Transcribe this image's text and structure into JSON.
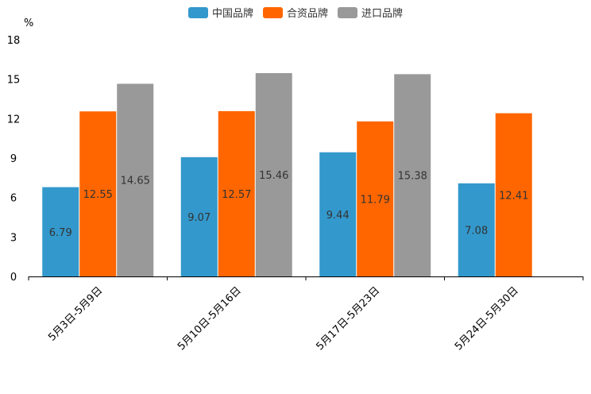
{
  "chart_data": {
    "type": "bar",
    "title": "",
    "ylabel": "%",
    "xlabel": "",
    "ylim": [
      0,
      18
    ],
    "yticks": [
      0,
      3,
      6,
      9,
      12,
      15,
      18
    ],
    "grid": false,
    "legend_position": "top-center",
    "categories": [
      "5月3日-5月9日",
      "5月10日-5月16日",
      "5月17日-5月23日",
      "5月24日-5月30日"
    ],
    "series": [
      {
        "name": "中国品牌",
        "color": "#3398cc",
        "values": [
          6.79,
          9.07,
          9.44,
          7.08
        ]
      },
      {
        "name": "合资品牌",
        "color": "#ff6600",
        "values": [
          12.55,
          12.57,
          11.79,
          12.41
        ]
      },
      {
        "name": "进口品牌",
        "color": "#999999",
        "values": [
          14.65,
          15.46,
          15.38,
          null
        ]
      }
    ]
  }
}
